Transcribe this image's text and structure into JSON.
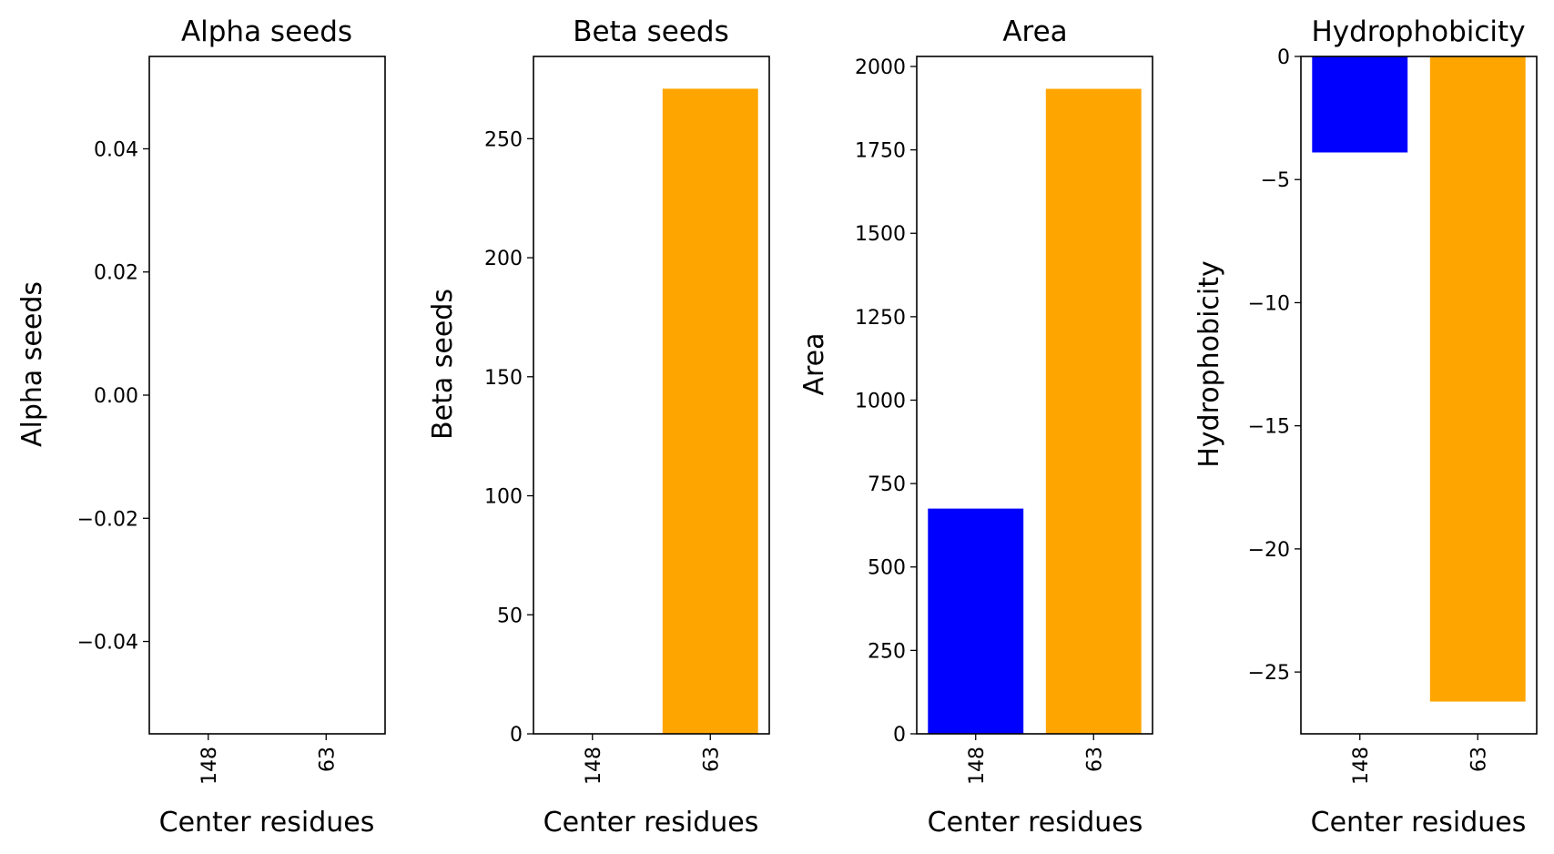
{
  "chart_data": [
    {
      "type": "bar",
      "title": "Alpha seeds",
      "xlabel": "Center residues",
      "ylabel": "Alpha seeds",
      "categories": [
        "148",
        "63"
      ],
      "values": [
        0,
        0
      ],
      "colors": [
        "#0000ff",
        "#ffa500"
      ],
      "ylim": [
        -0.055,
        0.055
      ],
      "yticks": [
        0.04,
        0.02,
        0.0,
        -0.02,
        -0.04
      ],
      "ytick_labels": [
        "0.04",
        "0.02",
        "0.00",
        "−0.02",
        "−0.04"
      ]
    },
    {
      "type": "bar",
      "title": "Beta seeds",
      "xlabel": "Center residues",
      "ylabel": "Beta seeds",
      "categories": [
        "148",
        "63"
      ],
      "values": [
        0,
        271
      ],
      "colors": [
        "#0000ff",
        "#ffa500"
      ],
      "ylim": [
        0,
        284.55
      ],
      "yticks": [
        0,
        50,
        100,
        150,
        200,
        250
      ],
      "ytick_labels": [
        "0",
        "50",
        "100",
        "150",
        "200",
        "250"
      ]
    },
    {
      "type": "bar",
      "title": "Area",
      "xlabel": "Center residues",
      "ylabel": "Area",
      "categories": [
        "148",
        "63"
      ],
      "values": [
        675,
        1933
      ],
      "colors": [
        "#0000ff",
        "#ffa500"
      ],
      "ylim": [
        0,
        2030
      ],
      "yticks": [
        0,
        250,
        500,
        750,
        1000,
        1250,
        1500,
        1750,
        2000
      ],
      "ytick_labels": [
        "0",
        "250",
        "500",
        "750",
        "1000",
        "1250",
        "1500",
        "1750",
        "2000"
      ]
    },
    {
      "type": "bar",
      "title": "Hydrophobicity",
      "xlabel": "Center residues",
      "ylabel": "Hydrophobicity",
      "categories": [
        "148",
        "63"
      ],
      "values": [
        -3.9,
        -26.2
      ],
      "colors": [
        "#0000ff",
        "#ffa500"
      ],
      "ylim": [
        -27.51,
        0
      ],
      "yticks": [
        0,
        -5,
        -10,
        -15,
        -20,
        -25
      ],
      "ytick_labels": [
        "0",
        "−5",
        "−10",
        "−15",
        "−20",
        "−25"
      ]
    }
  ]
}
